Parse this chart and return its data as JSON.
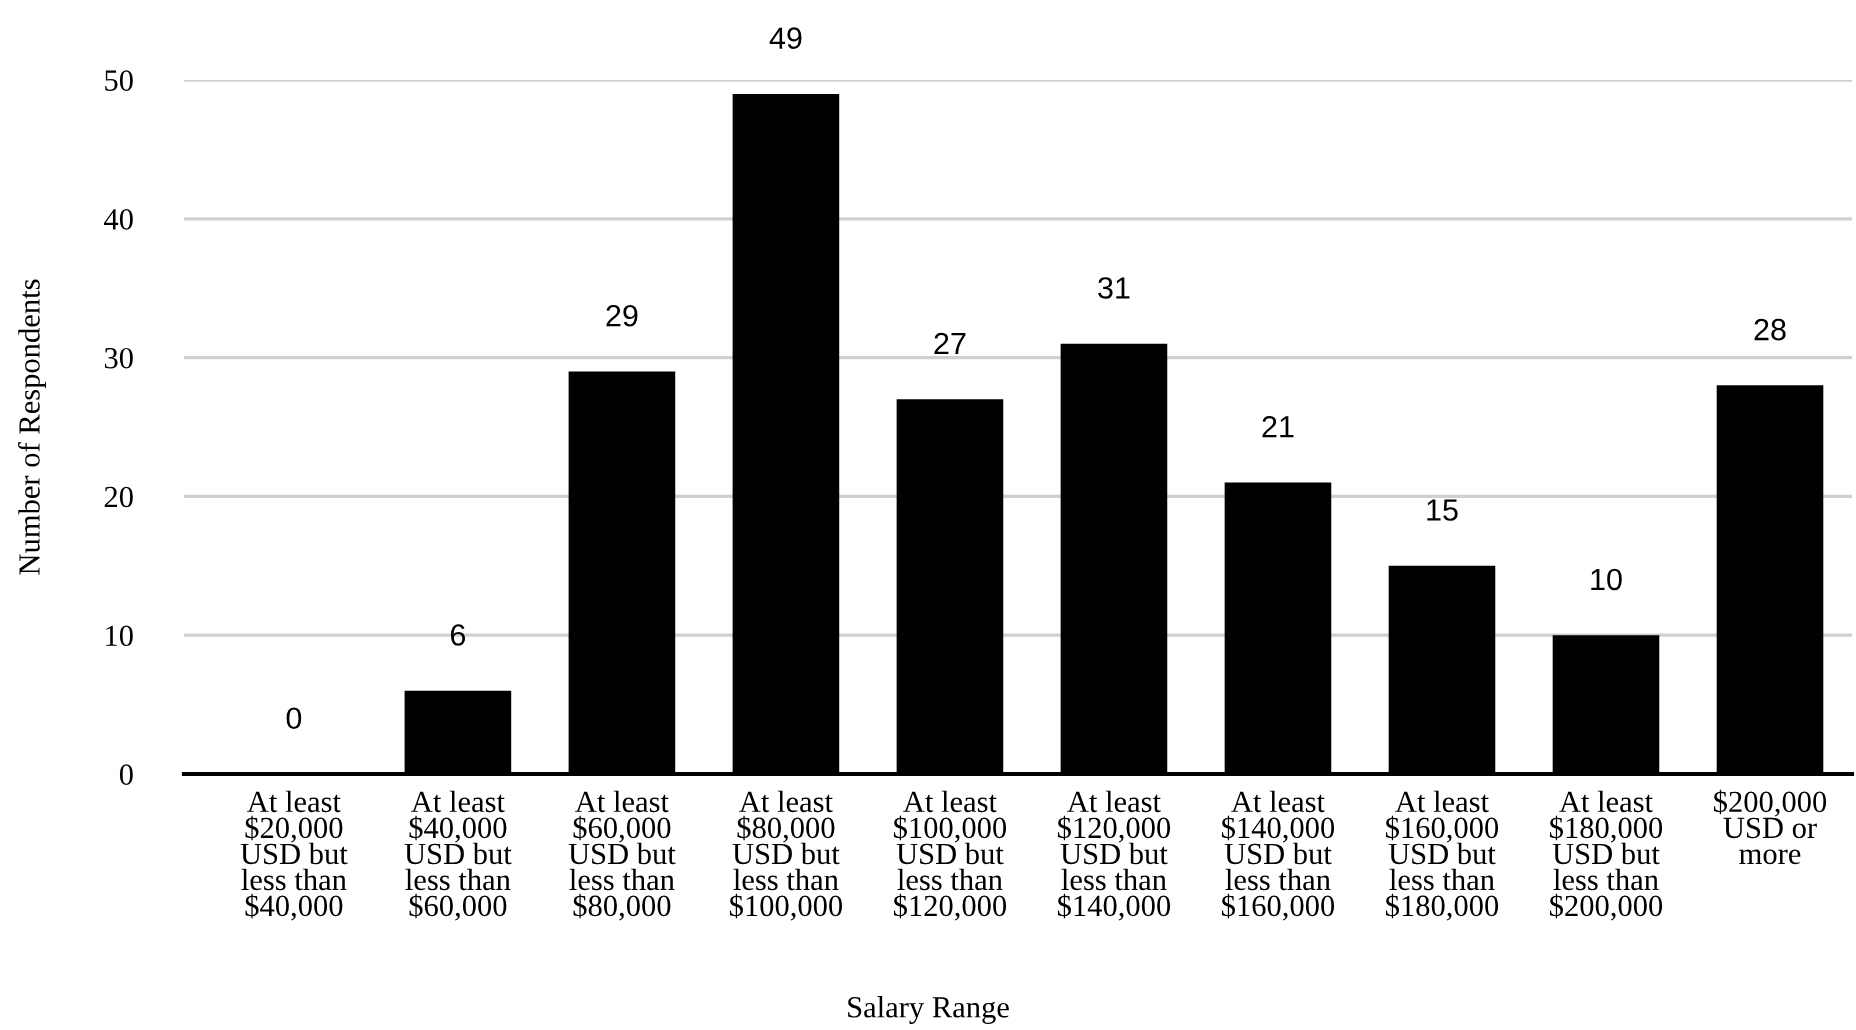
{
  "chart_data": {
    "type": "bar",
    "categories": [
      "At least\n$20,000\nUSD but\nless than\n$40,000",
      "At least\n$40,000\nUSD but\nless than\n$60,000",
      "At least\n$60,000\nUSD but\nless than\n$80,000",
      "At least\n$80,000\nUSD but\nless than\n$100,000",
      "At least\n$100,000\nUSD but\nless than\n$120,000",
      "At least\n$120,000\nUSD but\nless than\n$140,000",
      "At least\n$140,000\nUSD but\nless than\n$160,000",
      "At least\n$160,000\nUSD but\nless than\n$180,000",
      "At least\n$180,000\nUSD but\nless than\n$200,000",
      "$200,000\nUSD or\nmore"
    ],
    "values": [
      0,
      6,
      29,
      49,
      27,
      31,
      21,
      15,
      10,
      28
    ],
    "color": "#000000",
    "xlabel": "Salary Range",
    "ylabel": "Number of Respondents",
    "ylim": [
      0,
      50
    ],
    "yticks": [
      0,
      10,
      20,
      30,
      40,
      50
    ],
    "grid": "y",
    "data_labels": true
  }
}
